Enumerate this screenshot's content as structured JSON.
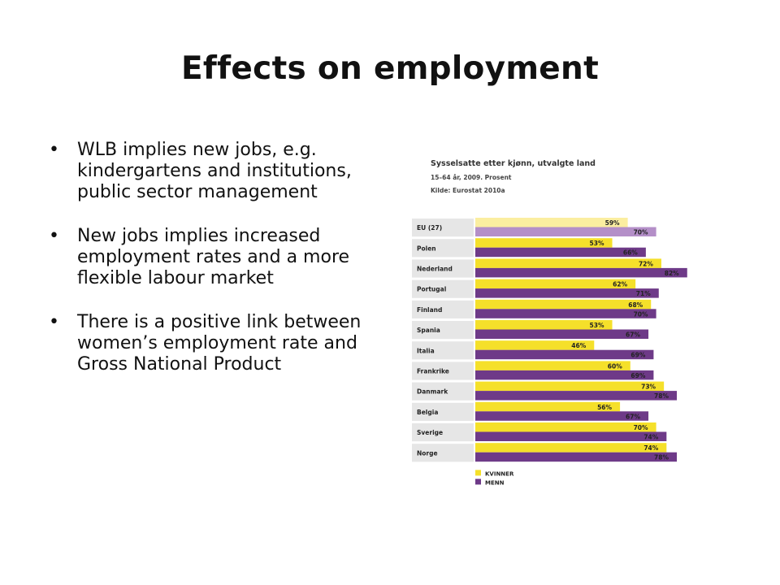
{
  "slide": {
    "title": "Effects on employment",
    "bullets": [
      "WLB implies new jobs, e.g. kindergartens and institutions, public sector management",
      "New jobs implies increased employment rates and a more flexible  labour market",
      "There is a positive link between women’s employment rate and Gross National Product"
    ]
  },
  "chart_data": {
    "type": "bar",
    "orientation": "horizontal",
    "title": "Sysselsatte etter kjønn, utvalgte land",
    "subtitle": "15–64 år, 2009. Prosent",
    "source": "Kilde: Eurostat 2010a",
    "categories": [
      "EU (27)",
      "Polen",
      "Nederland",
      "Portugal",
      "Finland",
      "Spania",
      "Italia",
      "Frankrike",
      "Danmark",
      "Belgia",
      "Sverige",
      "Norge"
    ],
    "series": [
      {
        "name": "KVINNER",
        "color": "#f5e02a",
        "highlight_color": "#fbeea0",
        "values": [
          59,
          53,
          72,
          62,
          68,
          53,
          46,
          60,
          73,
          56,
          70,
          74
        ],
        "labels": [
          "59%",
          "53%",
          "72%",
          "62%",
          "68%",
          "53%",
          "46%",
          "60%",
          "73%",
          "56%",
          "70%",
          "74%"
        ]
      },
      {
        "name": "MENN",
        "color": "#6e3a88",
        "highlight_color": "#b48fc8",
        "values": [
          70,
          66,
          82,
          71,
          70,
          67,
          69,
          69,
          78,
          67,
          74,
          78
        ],
        "labels": [
          "70%",
          "66%",
          "82%",
          "71%",
          "70%",
          "67%",
          "69%",
          "69%",
          "78%",
          "67%",
          "74%",
          "78%"
        ]
      }
    ],
    "highlight_category": "EU (27)",
    "label_background": "#e6e6e6",
    "legend_position": "bottom-left",
    "grid": false
  }
}
